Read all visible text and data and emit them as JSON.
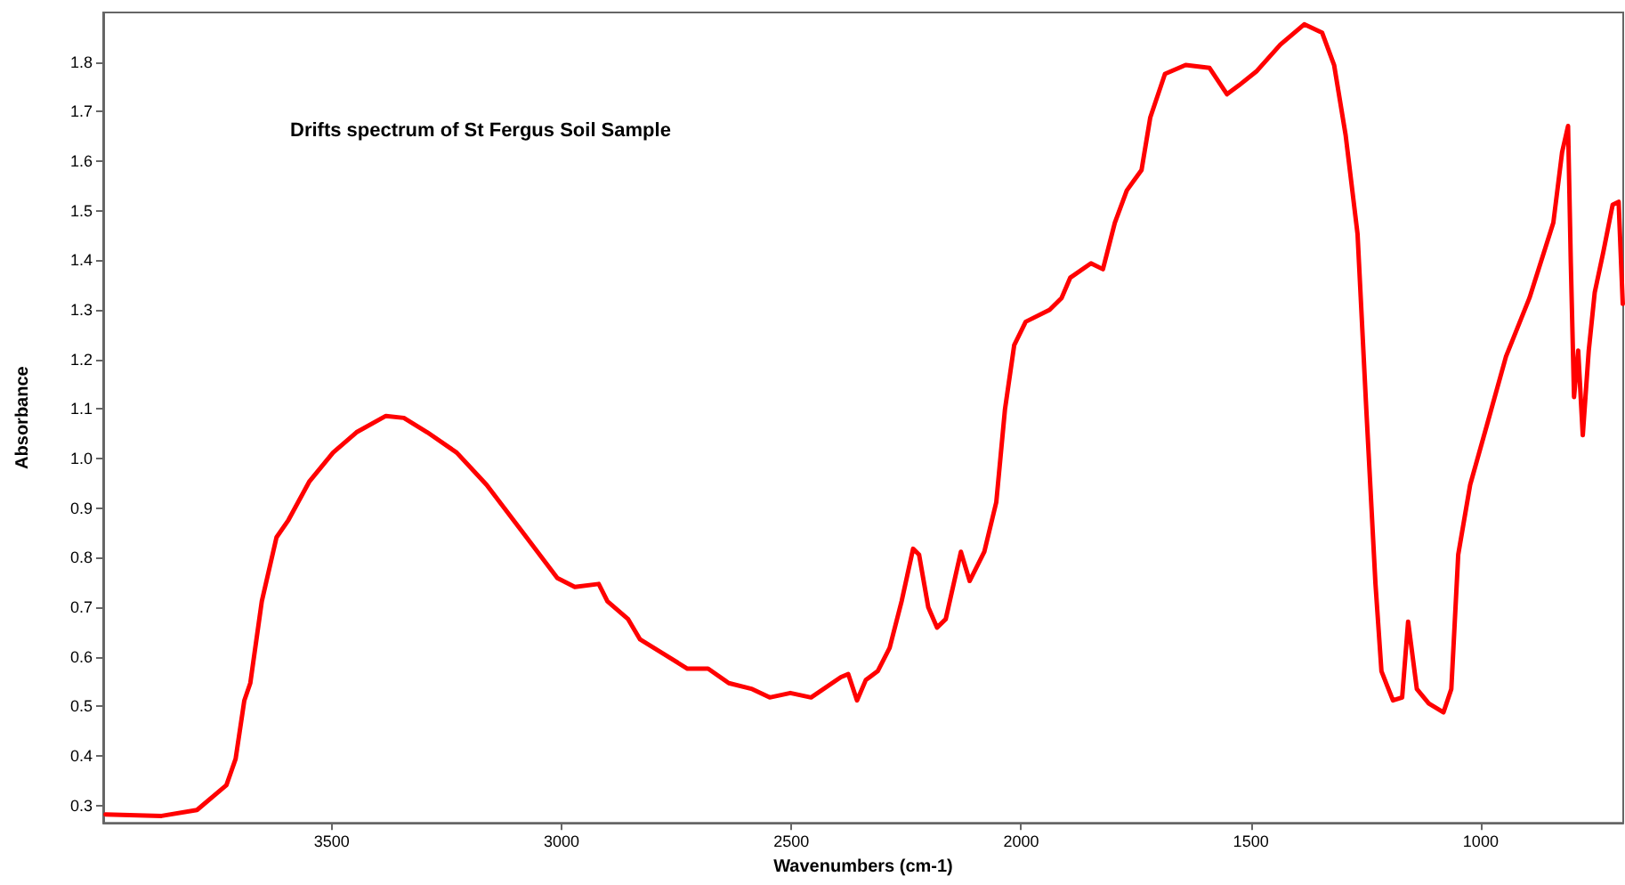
{
  "chart_data": {
    "type": "line",
    "title": "Drifts spectrum of St Fergus Soil Sample",
    "xlabel": "Wavenumbers (cm-1)",
    "ylabel": "Absorbance",
    "xlim": [
      3997,
      690
    ],
    "xticks": [
      3500,
      3000,
      2500,
      2000,
      1500,
      1000
    ],
    "ylim": [
      0.265,
      1.9
    ],
    "yticks": [
      0.3,
      0.4,
      0.5,
      0.6,
      0.7,
      0.8,
      0.9,
      {
        "value": 1,
        "label": "1.0"
      },
      1.1,
      1.2,
      1.3,
      1.4,
      1.5,
      1.6,
      1.7,
      1.8
    ],
    "grid": false,
    "marker": "none",
    "line_style": "solid",
    "series": [
      {
        "color": "#ff0000",
        "x": [
          3992,
          3870,
          3793,
          3729,
          3709,
          3690,
          3677,
          3652,
          3620,
          3594,
          3549,
          3497,
          3446,
          3382,
          3343,
          3292,
          3228,
          3163,
          3086,
          3009,
          2971,
          2919,
          2900,
          2855,
          2829,
          2778,
          2726,
          2681,
          2636,
          2585,
          2547,
          2502,
          2457,
          2392,
          2376,
          2357,
          2338,
          2312,
          2286,
          2260,
          2235,
          2222,
          2202,
          2183,
          2164,
          2131,
          2112,
          2080,
          2054,
          2035,
          2015,
          1990,
          1938,
          1912,
          1893,
          1848,
          1822,
          1796,
          1770,
          1738,
          1719,
          1687,
          1642,
          1590,
          1552,
          1526,
          1487,
          1436,
          1384,
          1345,
          1319,
          1294,
          1268,
          1249,
          1229,
          1216,
          1191,
          1171,
          1158,
          1139,
          1113,
          1081,
          1064,
          1049,
          1023,
          984,
          945,
          894,
          842,
          823,
          810,
          804,
          797,
          788,
          778,
          765,
          752,
          733,
          713,
          700,
          691
        ],
        "values": [
          0.282,
          0.279,
          0.291,
          0.341,
          0.394,
          0.512,
          0.547,
          0.712,
          0.841,
          0.876,
          0.953,
          1.012,
          1.053,
          1.086,
          1.082,
          1.053,
          1.012,
          0.947,
          0.853,
          0.759,
          0.741,
          0.747,
          0.712,
          0.676,
          0.635,
          0.606,
          0.576,
          0.576,
          0.547,
          0.535,
          0.518,
          0.527,
          0.518,
          0.559,
          0.565,
          0.512,
          0.553,
          0.571,
          0.618,
          0.712,
          0.818,
          0.806,
          0.7,
          0.659,
          0.676,
          0.812,
          0.753,
          0.812,
          0.912,
          1.1,
          1.229,
          1.276,
          1.3,
          1.324,
          1.365,
          1.394,
          1.382,
          1.476,
          1.541,
          1.582,
          1.688,
          1.776,
          1.794,
          1.788,
          1.735,
          1.753,
          1.782,
          1.835,
          1.876,
          1.859,
          1.794,
          1.653,
          1.453,
          1.1,
          0.747,
          0.571,
          0.512,
          0.518,
          0.671,
          0.535,
          0.506,
          0.488,
          0.535,
          0.806,
          0.947,
          1.076,
          1.206,
          1.324,
          1.476,
          1.618,
          1.671,
          1.394,
          1.124,
          1.218,
          1.047,
          1.218,
          1.335,
          1.418,
          1.512,
          1.518,
          1.312
        ]
      }
    ]
  }
}
